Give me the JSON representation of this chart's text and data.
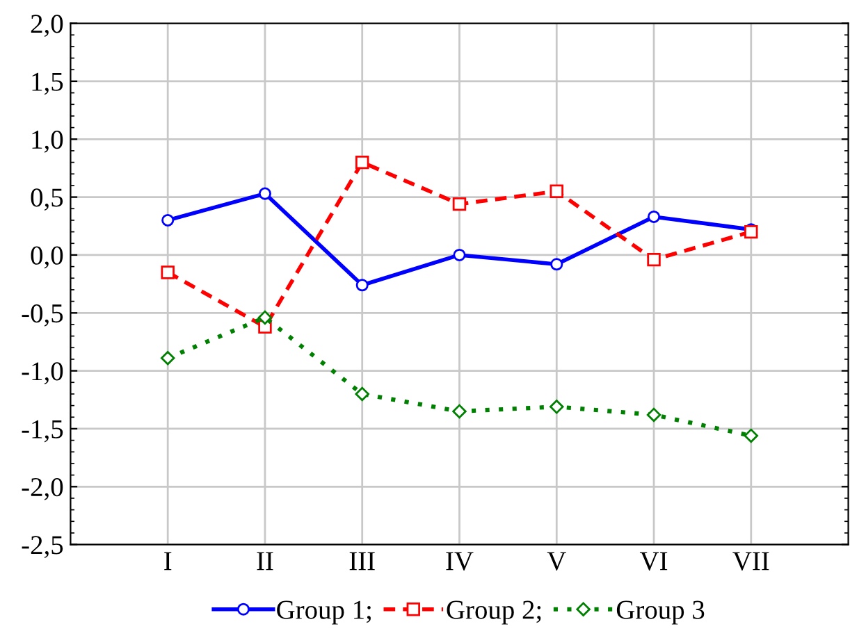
{
  "chart_data": {
    "type": "line",
    "categories": [
      "I",
      "II",
      "III",
      "IV",
      "V",
      "VI",
      "VII"
    ],
    "series": [
      {
        "name": "Group 1;",
        "color": "#0000ff",
        "values": [
          0.3,
          0.53,
          -0.26,
          0.0,
          -0.08,
          0.33,
          0.22
        ],
        "marker": "circle",
        "line_style": "solid"
      },
      {
        "name": "Group 2;",
        "color": "#ff0000",
        "values": [
          -0.15,
          -0.62,
          0.8,
          0.44,
          0.55,
          -0.04,
          0.2
        ],
        "marker": "square",
        "line_style": "dashed"
      },
      {
        "name": "Group 3",
        "color": "#008000",
        "values": [
          -0.89,
          -0.54,
          -1.2,
          -1.35,
          -1.31,
          -1.38,
          -1.56
        ],
        "marker": "diamond",
        "line_style": "dotted"
      }
    ],
    "ylim": [
      -2.5,
      2.0
    ],
    "yticks": [
      {
        "value": -2.5,
        "label": "-2,5"
      },
      {
        "value": -2.0,
        "label": "-2,0"
      },
      {
        "value": -1.5,
        "label": "-1,5"
      },
      {
        "value": -1.0,
        "label": "-1,0"
      },
      {
        "value": -0.5,
        "label": "-0,5"
      },
      {
        "value": 0.0,
        "label": "0,0"
      },
      {
        "value": 0.5,
        "label": "0,5"
      },
      {
        "value": 1.0,
        "label": "1,0"
      },
      {
        "value": 1.5,
        "label": "1,5"
      },
      {
        "value": 2.0,
        "label": "2,0"
      }
    ],
    "grid": true,
    "legend": "bottom"
  }
}
